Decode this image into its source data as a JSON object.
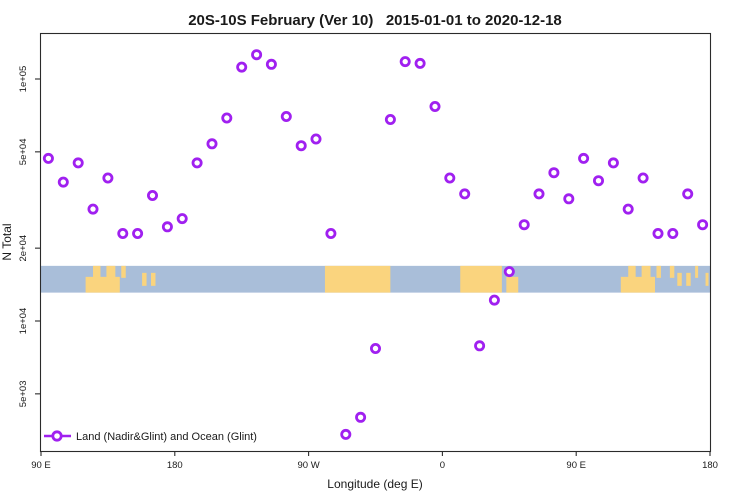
{
  "title": "20S-10S February (Ver 10)   2015-01-01 to 2020-12-18",
  "legend": {
    "label": "Land (Nadir&Glint) and Ocean (Glint)",
    "marker": "open-circle-on-line"
  },
  "x_axis": {
    "title": "Longitude (deg E)",
    "ticks": [
      {
        "value": 90,
        "label": "90 E"
      },
      {
        "value": 180,
        "label": "180"
      },
      {
        "value": 270,
        "label": "90 W"
      },
      {
        "value": 360,
        "label": "0"
      },
      {
        "value": 450,
        "label": "90 E"
      },
      {
        "value": 540,
        "label": "180"
      }
    ]
  },
  "y_axis": {
    "title": "N Total",
    "scale": "log",
    "ticks": [
      {
        "value": 100000,
        "label": "1e+05"
      },
      {
        "value": 50000,
        "label": "5e+04"
      },
      {
        "value": 20000,
        "label": "2e+04"
      },
      {
        "value": 10000,
        "label": "1e+04"
      },
      {
        "value": 5000,
        "label": "5e+03"
      }
    ]
  },
  "colors": {
    "marker": "#A020F0",
    "ocean": "#A9BED9",
    "land": "#FAD47E",
    "axis": "#2b2b2b",
    "background": "#ffffff"
  },
  "chart_data": {
    "type": "scatter",
    "title": "20S-10S February (Ver 10)   2015-01-01 to 2020-12-18",
    "xlabel": "Longitude (deg E)",
    "ylabel": "N Total",
    "xlim": [
      90,
      540
    ],
    "ylim": [
      2900,
      154000
    ],
    "yscale": "log",
    "grid": false,
    "legend_position": "bottom-left",
    "series_name": "Land (Nadir&Glint) and Ocean (Glint)",
    "x": [
      95,
      105,
      115,
      125,
      135,
      145,
      155,
      165,
      175,
      185,
      195,
      205,
      215,
      225,
      235,
      245,
      255,
      265,
      275,
      285,
      295,
      305,
      315,
      325,
      335,
      345,
      355,
      365,
      375,
      385,
      395,
      405,
      415,
      425,
      435,
      445,
      455,
      465,
      475,
      485,
      495,
      505,
      515,
      525,
      535
    ],
    "y": [
      47000,
      37500,
      45000,
      29000,
      39000,
      23000,
      23000,
      33000,
      24500,
      26500,
      45000,
      54000,
      69000,
      112000,
      126000,
      115000,
      70000,
      53000,
      56500,
      23000,
      3400,
      4000,
      7700,
      68000,
      118000,
      116000,
      77000,
      39000,
      33500,
      7900,
      12200,
      16000,
      25000,
      33500,
      41000,
      32000,
      47000,
      38000,
      45000,
      29000,
      39000,
      23000,
      23000,
      33500,
      25000
    ],
    "map_strip": {
      "description": "latitude-band land/ocean strip",
      "band_value_range": [
        13100,
        16900
      ],
      "land_patches": [
        {
          "lon": [
            120,
            143
          ],
          "part": "bottom"
        },
        {
          "lon": [
            125,
            130
          ],
          "part": "top"
        },
        {
          "lon": [
            134,
            140
          ],
          "part": "top"
        },
        {
          "lon": [
            144,
            147
          ],
          "part": "top"
        },
        {
          "lon": [
            158,
            161
          ],
          "part": "mid"
        },
        {
          "lon": [
            164,
            167
          ],
          "part": "mid"
        },
        {
          "lon": [
            281,
            325
          ],
          "part": "full"
        },
        {
          "lon": [
            372,
            400
          ],
          "part": "full"
        },
        {
          "lon": [
            403,
            411
          ],
          "part": "bottom"
        },
        {
          "lon": [
            480,
            503
          ],
          "part": "bottom"
        },
        {
          "lon": [
            485,
            490
          ],
          "part": "top"
        },
        {
          "lon": [
            494,
            500
          ],
          "part": "top"
        },
        {
          "lon": [
            504,
            507
          ],
          "part": "top"
        },
        {
          "lon": [
            513,
            516
          ],
          "part": "top"
        },
        {
          "lon": [
            518,
            521
          ],
          "part": "mid"
        },
        {
          "lon": [
            524,
            527
          ],
          "part": "mid"
        },
        {
          "lon": [
            530,
            532
          ],
          "part": "top"
        },
        {
          "lon": [
            537,
            539
          ],
          "part": "mid"
        }
      ]
    }
  }
}
